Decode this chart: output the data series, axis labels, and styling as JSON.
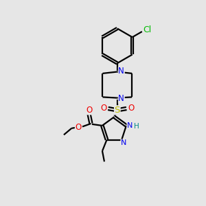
{
  "bg_color": "#e6e6e6",
  "bond_color": "#000000",
  "bond_width": 1.6,
  "atom_colors": {
    "N": "#0000ee",
    "O": "#ee0000",
    "S": "#bbbb00",
    "Cl": "#00bb00",
    "H": "#008888",
    "C": "#000000"
  },
  "font_size": 8.5
}
